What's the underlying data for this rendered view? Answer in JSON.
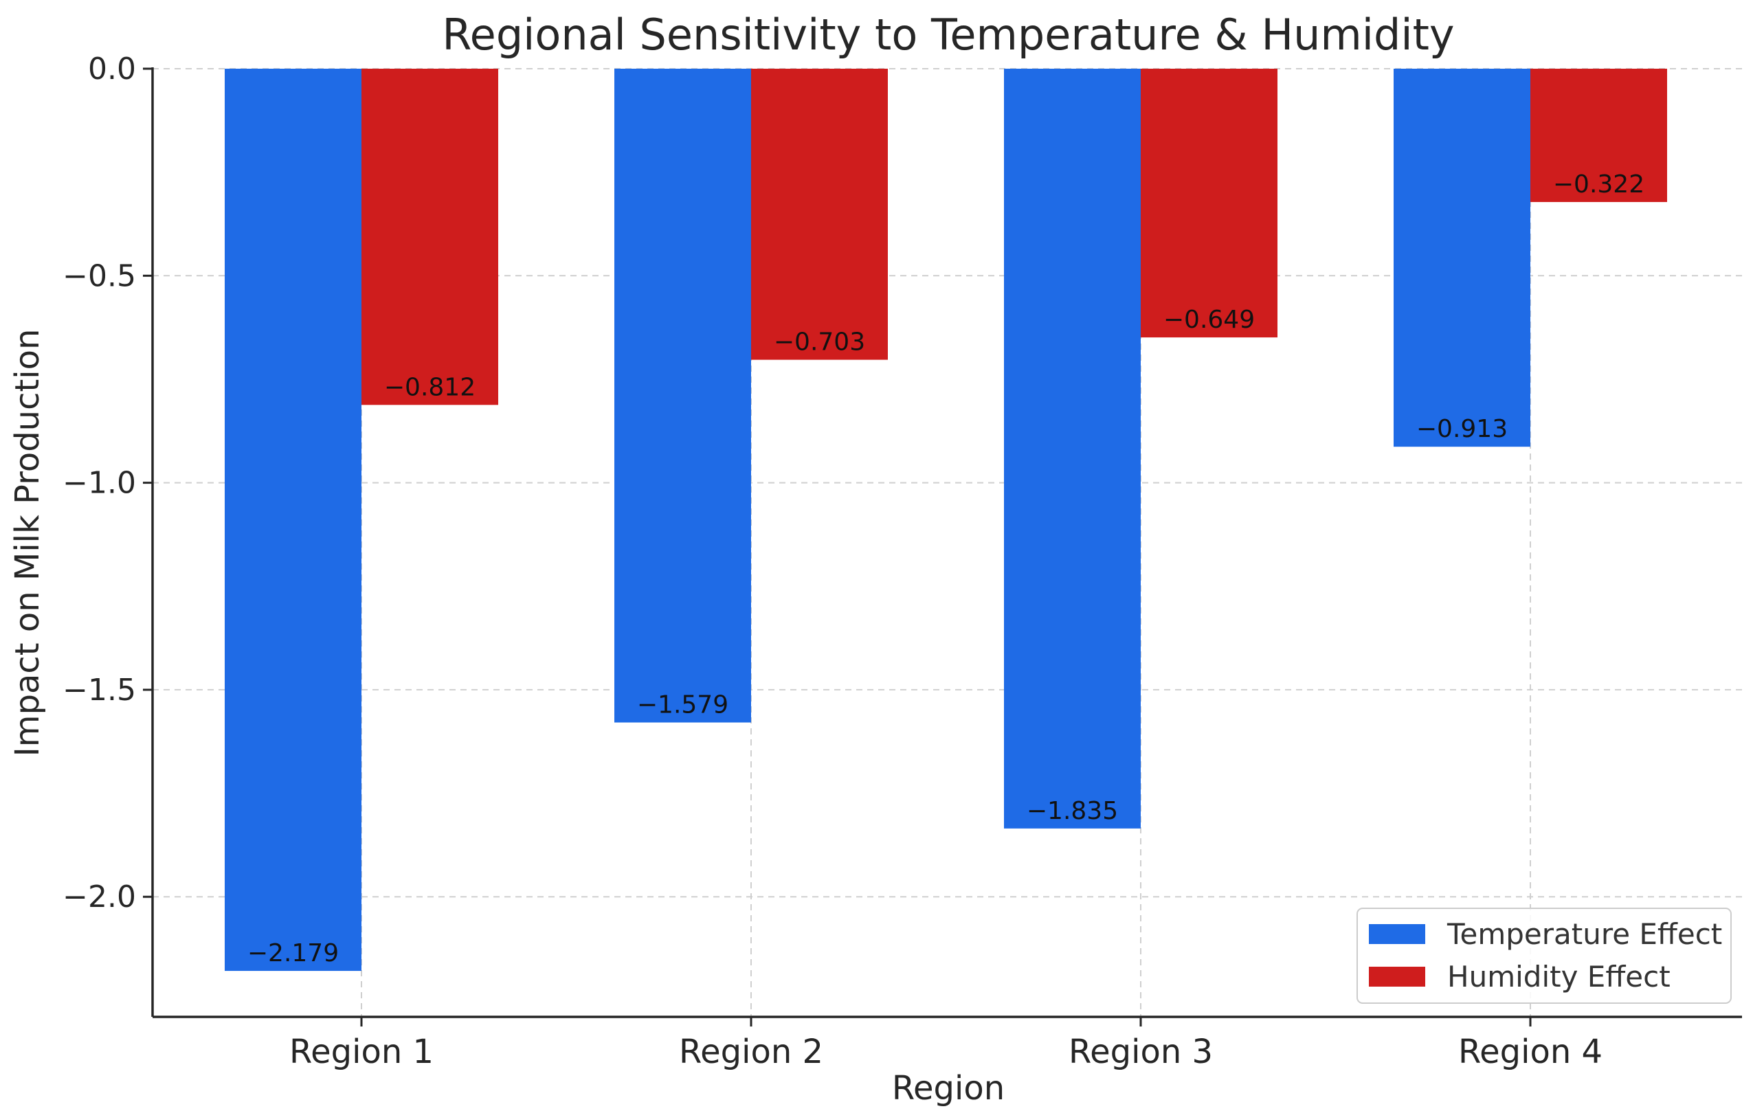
{
  "chart_data": {
    "type": "bar",
    "title": "Regional Sensitivity to Temperature & Humidity",
    "xlabel": "Region",
    "ylabel": "Impact on Milk Production",
    "categories": [
      "Region 1",
      "Region 2",
      "Region 3",
      "Region 4"
    ],
    "series": [
      {
        "name": "Temperature Effect",
        "color": "#1f6be6",
        "values": [
          -2.179,
          -1.579,
          -1.835,
          -0.913
        ],
        "labels": [
          "−2.179",
          "−1.579",
          "−1.835",
          "−0.913"
        ]
      },
      {
        "name": "Humidity Effect",
        "color": "#cf1d1d",
        "values": [
          -0.812,
          -0.703,
          -0.649,
          -0.322
        ],
        "labels": [
          "−0.812",
          "−0.703",
          "−0.649",
          "−0.322"
        ]
      }
    ],
    "ylim": [
      -2.29,
      0.0
    ],
    "yticks": [
      0.0,
      -0.5,
      -1.0,
      -1.5,
      -2.0
    ],
    "ytick_labels": [
      "0.0",
      "−0.5",
      "−1.0",
      "−1.5",
      "−2.0"
    ],
    "grid": true,
    "legend_position": "lower-right"
  }
}
